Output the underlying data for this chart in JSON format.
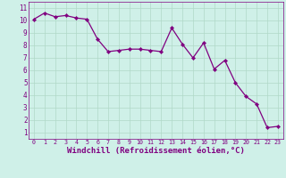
{
  "x": [
    0,
    1,
    2,
    3,
    4,
    5,
    6,
    7,
    8,
    9,
    10,
    11,
    12,
    13,
    14,
    15,
    16,
    17,
    18,
    19,
    20,
    21,
    22,
    23
  ],
  "y": [
    10.1,
    10.6,
    10.3,
    10.4,
    10.2,
    10.1,
    8.5,
    7.5,
    7.6,
    7.7,
    7.7,
    7.6,
    7.5,
    9.4,
    8.1,
    7.0,
    8.2,
    6.1,
    6.8,
    5.0,
    3.9,
    3.3,
    1.4,
    1.5
  ],
  "line_color": "#800080",
  "marker": "D",
  "markersize": 2.2,
  "linewidth": 0.9,
  "xlabel": "Windchill (Refroidissement éolien,°C)",
  "xlabel_fontsize": 6.5,
  "bg_color": "#cff0e8",
  "grid_color": "#b0d8c8",
  "tick_color": "#800080",
  "xlim": [
    -0.5,
    23.5
  ],
  "ylim": [
    0.5,
    11.5
  ],
  "xticks": [
    0,
    1,
    2,
    3,
    4,
    5,
    6,
    7,
    8,
    9,
    10,
    11,
    12,
    13,
    14,
    15,
    16,
    17,
    18,
    19,
    20,
    21,
    22,
    23
  ],
  "yticks": [
    1,
    2,
    3,
    4,
    5,
    6,
    7,
    8,
    9,
    10,
    11
  ],
  "xtick_fontsize": 4.8,
  "ytick_fontsize": 5.5
}
